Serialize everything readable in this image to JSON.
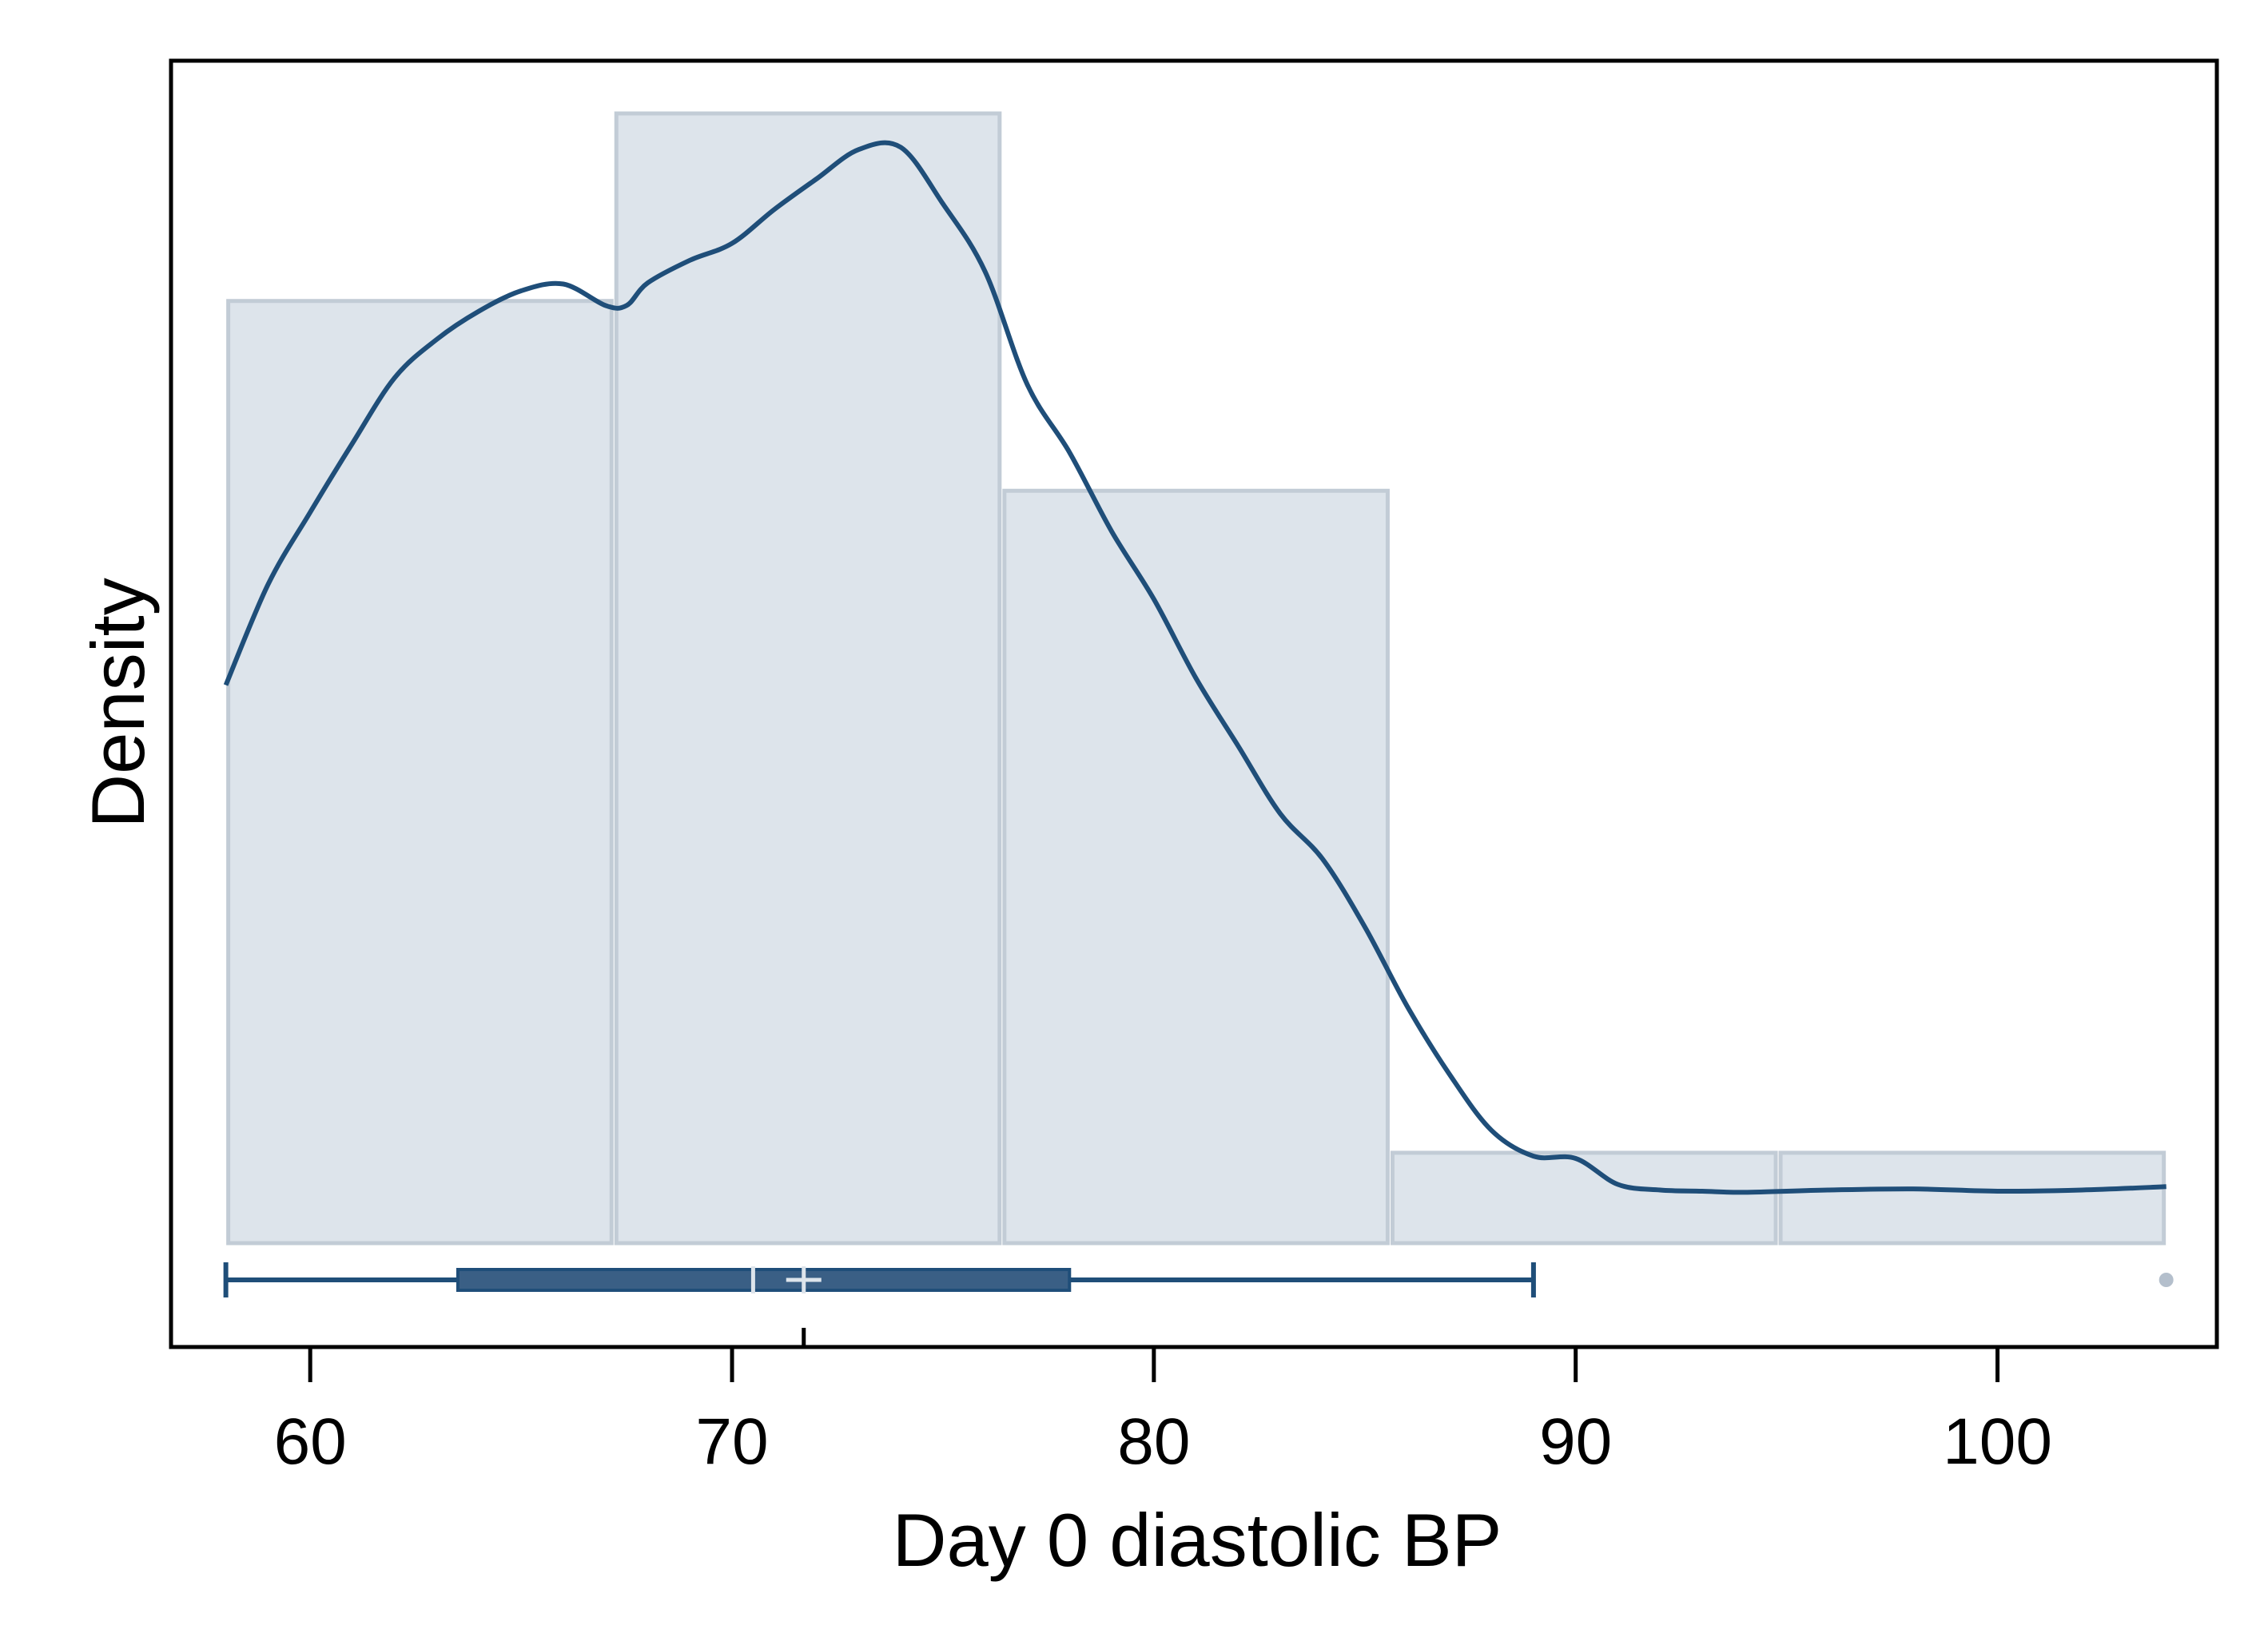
{
  "chart_data": {
    "type": "histogram",
    "xlabel": "Day 0 diastolic BP",
    "ylabel": "Density",
    "x_ticks": [
      60,
      70,
      80,
      90,
      100
    ],
    "xlim": [
      56.7,
      105.2
    ],
    "ylim": [
      0,
      1
    ],
    "grid": false,
    "histogram": {
      "bins": [
        {
          "x0": 58.0,
          "x1": 67.2,
          "relative_height": 0.834
        },
        {
          "x0": 67.2,
          "x1": 76.4,
          "relative_height": 1.0
        },
        {
          "x0": 76.4,
          "x1": 85.6,
          "relative_height": 0.666
        },
        {
          "x0": 85.6,
          "x1": 94.8,
          "relative_height": 0.08
        },
        {
          "x0": 94.8,
          "x1": 104.0,
          "relative_height": 0.08
        }
      ]
    },
    "density_curve": {
      "x": [
        58.0,
        59.0,
        60.0,
        61.0,
        62.0,
        63.0,
        64.0,
        65.0,
        66.0,
        67.0,
        67.5,
        68.0,
        69.0,
        70.0,
        71.0,
        72.0,
        73.0,
        74.0,
        75.0,
        76.0,
        77.0,
        78.0,
        79.0,
        80.0,
        81.0,
        82.0,
        83.0,
        84.0,
        85.0,
        86.0,
        87.0,
        88.0,
        89.0,
        90.0,
        91.0,
        92.0,
        93.0,
        94.0,
        96.0,
        98.0,
        100.0,
        102.0,
        104.0
      ],
      "y": [
        0.494,
        0.583,
        0.647,
        0.708,
        0.766,
        0.8,
        0.825,
        0.843,
        0.849,
        0.83,
        0.83,
        0.85,
        0.87,
        0.885,
        0.915,
        0.942,
        0.968,
        0.97,
        0.92,
        0.86,
        0.76,
        0.7,
        0.63,
        0.57,
        0.5,
        0.44,
        0.38,
        0.34,
        0.28,
        0.21,
        0.15,
        0.1,
        0.077,
        0.075,
        0.052,
        0.047,
        0.046,
        0.045,
        0.047,
        0.048,
        0.046,
        0.047,
        0.05
      ]
    },
    "box_plot": {
      "whisker_low": 58.0,
      "q1": 63.5,
      "median": 70.5,
      "mean": 71.7,
      "q3": 78.0,
      "whisker_high": 89.0,
      "outliers": [
        104.0
      ]
    },
    "colors": {
      "bar_fill": "#dde4eb",
      "bar_stroke": "#c2ccd6",
      "curve": "#1f4e79",
      "box_fill": "#3a5f85",
      "box_stroke": "#1f4e79",
      "marker": "#dde4eb",
      "outlier": "#b4bfcc"
    }
  }
}
